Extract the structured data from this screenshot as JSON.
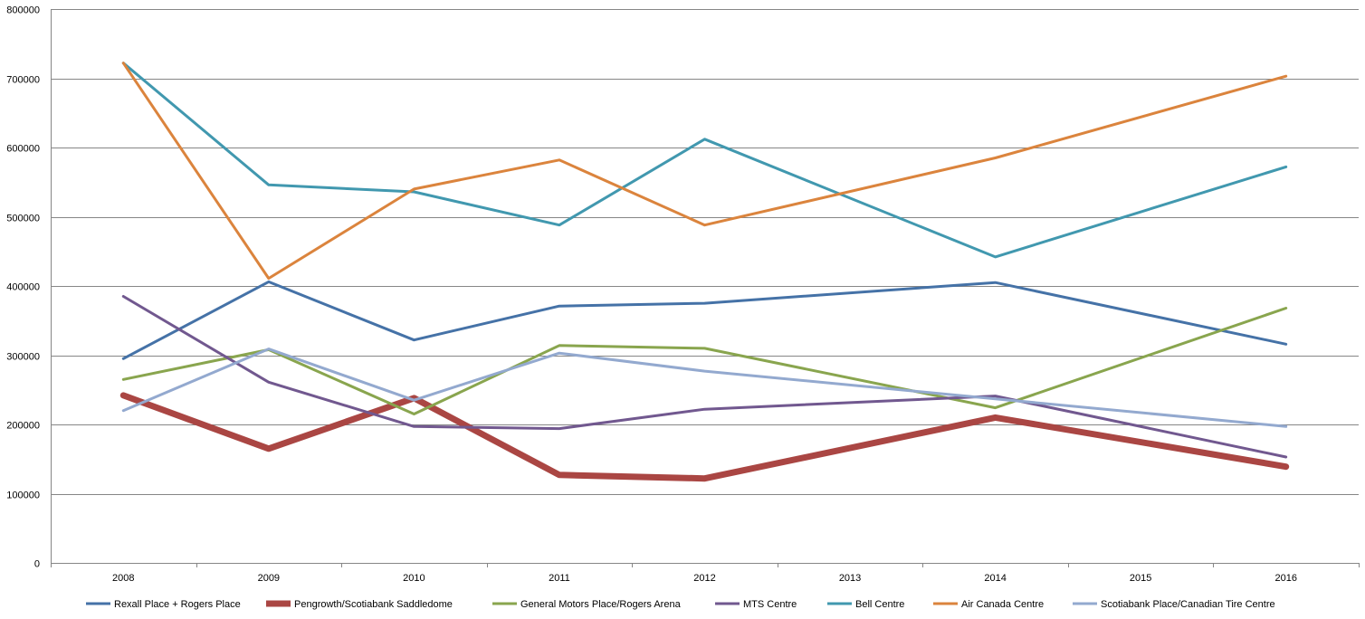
{
  "chart_data": {
    "type": "line",
    "title": "",
    "xlabel": "",
    "ylabel": "",
    "categories": [
      "2008",
      "2009",
      "2010",
      "2011",
      "2012",
      "2013",
      "2014",
      "2015",
      "2016"
    ],
    "ylim": [
      0,
      800000
    ],
    "yticks": [
      "0",
      "100000",
      "200000",
      "300000",
      "400000",
      "500000",
      "600000",
      "700000",
      "800000"
    ],
    "grid": "horizontal",
    "legend_position": "bottom",
    "series": [
      {
        "name": "Rexall Place + Rogers Place",
        "color": "#4572A7",
        "width": 3,
        "values": [
          295000,
          406000,
          322000,
          371000,
          375000,
          null,
          405000,
          null,
          316000
        ]
      },
      {
        "name": "Pengrowth/Scotiabank Saddledome",
        "color": "#AA4643",
        "width": 7,
        "values": [
          242000,
          165000,
          238000,
          127000,
          122000,
          null,
          210000,
          null,
          139000
        ]
      },
      {
        "name": "General Motors Place/Rogers Arena",
        "color": "#89A54E",
        "width": 3,
        "values": [
          265000,
          308000,
          215000,
          314000,
          310000,
          null,
          224000,
          null,
          368000
        ]
      },
      {
        "name": "MTS Centre",
        "color": "#71588F",
        "width": 3,
        "values": [
          385000,
          261000,
          197000,
          194000,
          222000,
          null,
          241000,
          null,
          153000
        ]
      },
      {
        "name": "Bell Centre",
        "color": "#4198AF",
        "width": 3,
        "values": [
          722000,
          546000,
          536000,
          488000,
          612000,
          null,
          442000,
          null,
          572000
        ]
      },
      {
        "name": "Air Canada Centre",
        "color": "#DB843D",
        "width": 3,
        "values": [
          722000,
          411000,
          540000,
          582000,
          488000,
          null,
          585000,
          null,
          703000
        ]
      },
      {
        "name": "Scotiabank Place/Canadian Tire Centre",
        "color": "#93A9CF",
        "width": 3,
        "values": [
          220000,
          309000,
          235000,
          303000,
          277000,
          null,
          237000,
          null,
          197000
        ]
      }
    ]
  }
}
